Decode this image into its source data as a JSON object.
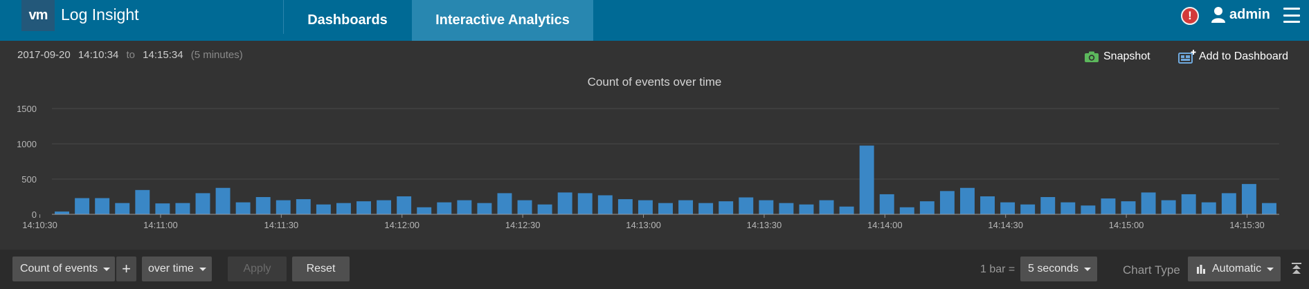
{
  "header": {
    "logo_text": "vm",
    "app_title": "Log Insight",
    "tabs": [
      {
        "label": "Dashboards",
        "active": false
      },
      {
        "label": "Interactive Analytics",
        "active": true
      }
    ],
    "alert_glyph": "!",
    "username": "admin",
    "icons": {
      "alert": "alert-icon",
      "user": "user-icon",
      "menu": "hamburger-menu-icon"
    },
    "colors": {
      "bar": "#006a95",
      "active_tab": "#2887b0",
      "alert": "#d33a3a"
    }
  },
  "time_range": {
    "date": "2017-09-20",
    "start": "14:10:34",
    "separator": "to",
    "end": "14:15:34",
    "duration": "(5 minutes)"
  },
  "actions": {
    "snapshot_label": "Snapshot",
    "add_to_dashboard_label": "Add to Dashboard",
    "icons": {
      "snapshot": "camera-icon",
      "add_to_dashboard": "dashboard-add-icon"
    }
  },
  "chart_data": {
    "type": "bar",
    "title": "Count of events over time",
    "xlabel": "",
    "ylabel": "",
    "ylim": [
      0,
      1500
    ],
    "yticks": [
      "0",
      "500",
      "1000",
      "1500"
    ],
    "xticks": [
      "14:10:30",
      "14:11:00",
      "14:11:30",
      "14:12:00",
      "14:12:30",
      "14:13:00",
      "14:13:30",
      "14:14:00",
      "14:14:30",
      "14:15:00",
      "14:15:30"
    ],
    "grid": true,
    "bar_color": "#3a87c6",
    "values": [
      40,
      230,
      230,
      160,
      345,
      155,
      160,
      300,
      375,
      170,
      245,
      200,
      215,
      140,
      160,
      185,
      200,
      255,
      100,
      170,
      200,
      160,
      300,
      200,
      140,
      310,
      300,
      270,
      215,
      200,
      160,
      200,
      160,
      185,
      240,
      200,
      160,
      140,
      200,
      110,
      975,
      285,
      100,
      185,
      330,
      375,
      255,
      170,
      140,
      245,
      170,
      125,
      225,
      185,
      310,
      200,
      285,
      170,
      300,
      430,
      160
    ]
  },
  "toolbar": {
    "function_select": "Count of events",
    "add_glyph": "+",
    "grouping_select": "over time",
    "apply_label": "Apply",
    "reset_label": "Reset",
    "bar_label": "1 bar =",
    "interval_select": "5 seconds",
    "chart_type_label": "Chart Type",
    "chart_type_select": "Automatic",
    "icons": {
      "chart_type": "bar-chart-icon",
      "collapse": "collapse-icon"
    }
  }
}
